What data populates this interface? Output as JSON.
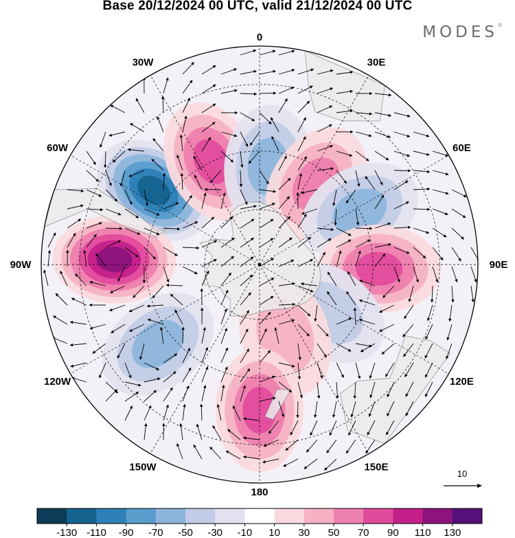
{
  "title": "Base 20/12/2024 00 UTC, valid 21/12/2024 00 UTC",
  "brand": "MODES",
  "brand_mark": "©",
  "map": {
    "projection": "south-polar-stereographic",
    "longitude_labels": [
      "0",
      "30E",
      "60E",
      "90E",
      "120E",
      "150E",
      "180",
      "150W",
      "120W",
      "90W",
      "60W",
      "30W"
    ],
    "reference_vector_label": "10",
    "land_color": "#ececec",
    "coast_color": "#8a8a8a"
  },
  "anomaly_centers": [
    {
      "lon": -55,
      "lat": -45,
      "value": -120
    },
    {
      "lon": -88,
      "lat": -40,
      "value": 120
    },
    {
      "lon": -25,
      "lat": -50,
      "value": 80
    },
    {
      "lon": 5,
      "lat": -55,
      "value": -70
    },
    {
      "lon": 35,
      "lat": -55,
      "value": 70
    },
    {
      "lon": 62,
      "lat": -50,
      "value": -60
    },
    {
      "lon": 92,
      "lat": -48,
      "value": 95
    },
    {
      "lon": 125,
      "lat": -60,
      "value": -50
    },
    {
      "lon": 160,
      "lat": -63,
      "value": 50
    },
    {
      "lon": 180,
      "lat": -40,
      "value": 85
    },
    {
      "lon": -128,
      "lat": -45,
      "value": -70
    }
  ],
  "colorbar": {
    "labels": [
      "-130",
      "-110",
      "-90",
      "-70",
      "-50",
      "-30",
      "-10",
      "10",
      "30",
      "50",
      "70",
      "90",
      "110",
      "130"
    ],
    "colors": [
      "#0b3c58",
      "#15628e",
      "#2e80b7",
      "#5a9ccb",
      "#8eb5dc",
      "#c3cce6",
      "#e3e1ef",
      "#ffffff",
      "#fadade",
      "#f6b2c4",
      "#ee80ae",
      "#e14b9d",
      "#c4208a",
      "#8c147c",
      "#551079"
    ]
  }
}
